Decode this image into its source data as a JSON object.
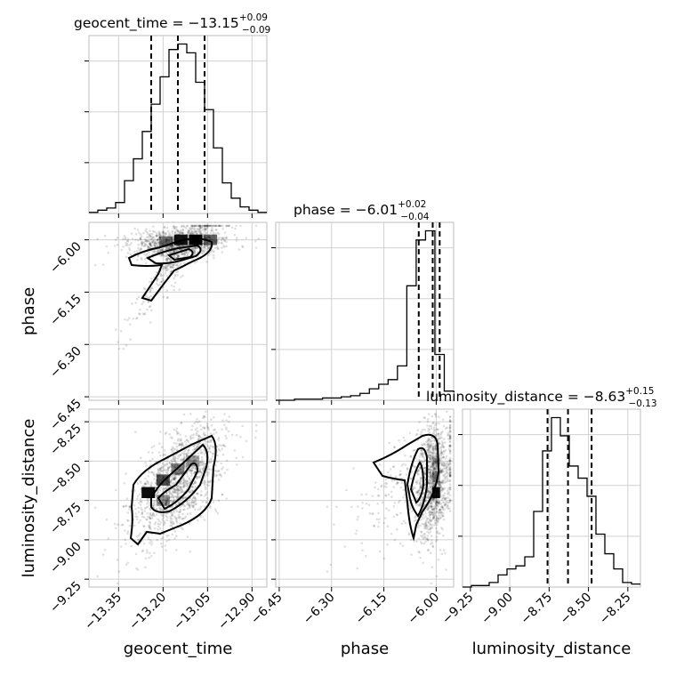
{
  "chart_data": {
    "type": "corner",
    "parameters": [
      "geocent_time",
      "phase",
      "luminosity_distance"
    ],
    "titles": [
      {
        "name": "geocent_time",
        "median": "−13.15",
        "plus": "+0.09",
        "minus": "−0.09"
      },
      {
        "name": "phase",
        "median": "−6.01",
        "plus": "+0.02",
        "minus": "−0.04"
      },
      {
        "name": "luminosity_distance",
        "median": "−8.63",
        "plus": "+0.15",
        "minus": "−0.13"
      }
    ],
    "ranges": {
      "geocent_time": [
        -13.45,
        -12.85
      ],
      "phase": [
        -6.46,
        -5.95
      ],
      "luminosity_distance": [
        -9.3,
        -8.17
      ]
    },
    "ticks": {
      "geocent_time": {
        "values": [
          -13.35,
          -13.2,
          -13.05,
          -12.9
        ],
        "labels": [
          "−13.35",
          "−13.20",
          "−13.05",
          "−12.90"
        ]
      },
      "phase": {
        "values": [
          -6.45,
          -6.3,
          -6.15,
          -6.0
        ],
        "labels": [
          "−6.45",
          "−6.30",
          "−6.15",
          "−6.00"
        ]
      },
      "luminosity_distance": {
        "values": [
          -9.25,
          -9.0,
          -8.75,
          -8.5,
          -8.25
        ],
        "labels": [
          "−9.25",
          "−9.00",
          "−8.75",
          "−8.50",
          "−8.25"
        ]
      }
    },
    "quantiles": {
      "geocent_time": [
        -13.24,
        -13.15,
        -13.06
      ],
      "phase": [
        -6.05,
        -6.01,
        -5.99
      ],
      "luminosity_distance": [
        -8.76,
        -8.63,
        -8.48
      ]
    },
    "hist_geocent_time": [
      1,
      3,
      5,
      10,
      30,
      50,
      75,
      100,
      125,
      150,
      155,
      147,
      120,
      95,
      60,
      28,
      14,
      6,
      3,
      1
    ],
    "hist_phase": [
      0,
      0,
      1,
      1,
      1,
      2,
      2,
      3,
      4,
      6,
      10,
      14,
      18,
      30,
      100,
      140,
      148,
      40,
      8
    ],
    "hist_luminosity_distance": [
      0,
      1,
      1,
      3,
      8,
      12,
      14,
      20,
      50,
      90,
      112,
      100,
      80,
      72,
      60,
      35,
      22,
      12,
      3,
      2
    ],
    "grid": true
  }
}
